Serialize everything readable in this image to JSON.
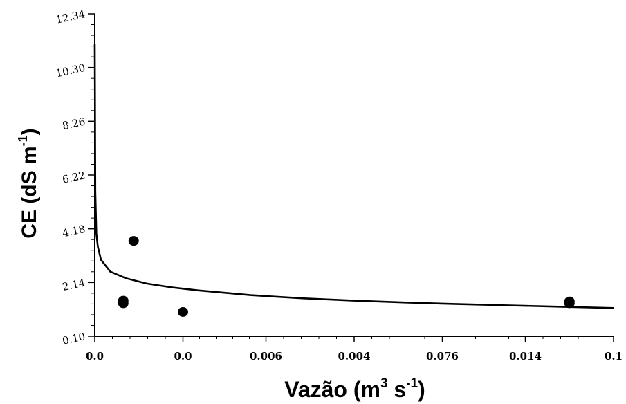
{
  "chart_data": {
    "type": "scatter",
    "xlabel": "Vazão (m",
    "xlabel_sup1": "3",
    "xlabel_mid": " s",
    "xlabel_sup2": "-1",
    "xlabel_end": ")",
    "ylabel": "CE  (dS m",
    "ylabel_sup": "-1",
    "ylabel_end": ")",
    "y_ticks": [
      "0.10",
      "2.14",
      "4.18",
      "6.22",
      "8.26",
      "10.30",
      "12.34"
    ],
    "ylim": [
      0.1,
      12.34
    ],
    "x_ticks": [
      "0.0",
      "0.0",
      "0.006",
      "0.004",
      "0.076",
      "0.014",
      "0.1"
    ],
    "x_tick_fraction": [
      0.0,
      0.17,
      0.33,
      0.5,
      0.67,
      0.83,
      1.0
    ],
    "points": [
      {
        "x": 0.055,
        "y": 1.35
      },
      {
        "x": 0.055,
        "y": 1.45
      },
      {
        "x": 0.075,
        "y": 3.72
      },
      {
        "x": 0.17,
        "y": 1.02
      },
      {
        "x": 0.915,
        "y": 1.35
      },
      {
        "x": 0.915,
        "y": 1.42
      }
    ],
    "fit_curve": {
      "model": "power",
      "points": [
        {
          "x": 0.0,
          "y": 11.2
        },
        {
          "x": 0.001,
          "y": 5.6
        },
        {
          "x": 0.003,
          "y": 4.0
        },
        {
          "x": 0.006,
          "y": 3.5
        },
        {
          "x": 0.012,
          "y": 3.0
        },
        {
          "x": 0.03,
          "y": 2.55
        },
        {
          "x": 0.06,
          "y": 2.3
        },
        {
          "x": 0.1,
          "y": 2.1
        },
        {
          "x": 0.15,
          "y": 1.95
        },
        {
          "x": 0.2,
          "y": 1.84
        },
        {
          "x": 0.3,
          "y": 1.66
        },
        {
          "x": 0.4,
          "y": 1.54
        },
        {
          "x": 0.5,
          "y": 1.45
        },
        {
          "x": 0.6,
          "y": 1.38
        },
        {
          "x": 0.7,
          "y": 1.32
        },
        {
          "x": 0.8,
          "y": 1.27
        },
        {
          "x": 0.9,
          "y": 1.22
        },
        {
          "x": 1.0,
          "y": 1.17
        }
      ]
    },
    "grid": false
  }
}
